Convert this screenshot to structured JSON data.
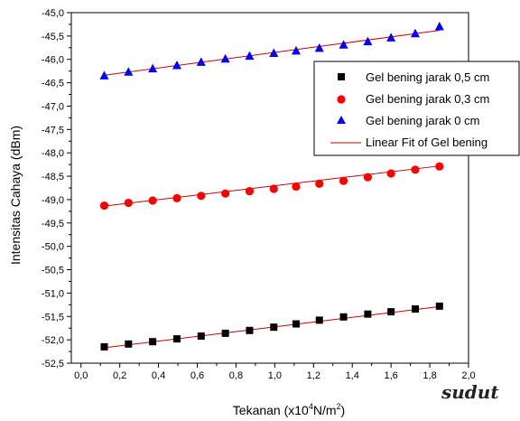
{
  "chart_data": {
    "type": "scatter",
    "xlabel": "Tekanan (x10^4N/m^2)",
    "xlabel_parts": {
      "pre": "Tekanan (x10",
      "sup1": "4",
      "mid": "N/m",
      "sup2": "2",
      "post": ")"
    },
    "ylabel": "Intensitas Cahaya (dBm)",
    "xlim": [
      -0.05,
      2.0
    ],
    "ylim": [
      -52.5,
      -45.0
    ],
    "x_ticks": [
      0.0,
      0.2,
      0.4,
      0.6,
      0.8,
      1.0,
      1.2,
      1.4,
      1.6,
      1.8,
      2.0
    ],
    "x_tick_labels": [
      "0,0",
      "0,2",
      "0,4",
      "0,6",
      "0,8",
      "1,0",
      "1,2",
      "1,4",
      "1,6",
      "1,8",
      "2,0"
    ],
    "y_ticks": [
      -45.0,
      -45.5,
      -46.0,
      -46.5,
      -47.0,
      -47.5,
      -48.0,
      -48.5,
      -49.0,
      -49.5,
      -50.0,
      -50.5,
      -51.0,
      -51.5,
      -52.0,
      -52.5
    ],
    "y_tick_labels": [
      "-45,0",
      "-45,5",
      "-46,0",
      "-46,5",
      "-47,0",
      "-47,5",
      "-48,0",
      "-48,5",
      "-49,0",
      "-49,5",
      "-50,0",
      "-50,5",
      "-51,0",
      "-51,5",
      "-52,0",
      "-52,5"
    ],
    "grid": false,
    "legend_position": "top-right",
    "x": [
      0.12,
      0.245,
      0.37,
      0.495,
      0.62,
      0.745,
      0.87,
      0.995,
      1.11,
      1.23,
      1.355,
      1.48,
      1.6,
      1.725,
      1.85
    ],
    "series": [
      {
        "name": "Gel bening jarak 0,5 cm",
        "marker": "square",
        "color": "#000000",
        "values": [
          -52.15,
          -52.09,
          -52.04,
          -51.98,
          -51.92,
          -51.86,
          -51.8,
          -51.73,
          -51.66,
          -51.58,
          -51.51,
          -51.45,
          -51.4,
          -51.34,
          -51.28
        ]
      },
      {
        "name": "Gel bening jarak 0,3 cm",
        "marker": "circle",
        "color": "#ff0000",
        "values": [
          -49.13,
          -49.07,
          -49.02,
          -48.97,
          -48.92,
          -48.87,
          -48.82,
          -48.77,
          -48.72,
          -48.66,
          -48.6,
          -48.52,
          -48.44,
          -48.36,
          -48.29
        ]
      },
      {
        "name": "Gel bening jarak 0 cm",
        "marker": "triangle",
        "color": "#0000ff",
        "values": [
          -46.35,
          -46.27,
          -46.2,
          -46.13,
          -46.06,
          -45.99,
          -45.93,
          -45.87,
          -45.82,
          -45.76,
          -45.69,
          -45.62,
          -45.54,
          -45.45,
          -45.3
        ]
      }
    ],
    "fit_lines": [
      {
        "x": [
          0.12,
          1.85
        ],
        "y": [
          -52.17,
          -51.29
        ]
      },
      {
        "x": [
          0.12,
          1.85
        ],
        "y": [
          -49.14,
          -48.28
        ]
      },
      {
        "x": [
          0.12,
          1.85
        ],
        "y": [
          -46.34,
          -45.38
        ]
      }
    ],
    "fit_legend": {
      "name": "Linear Fit of  Gel bening",
      "color": "#cc0000"
    },
    "watermark": "sudut"
  }
}
